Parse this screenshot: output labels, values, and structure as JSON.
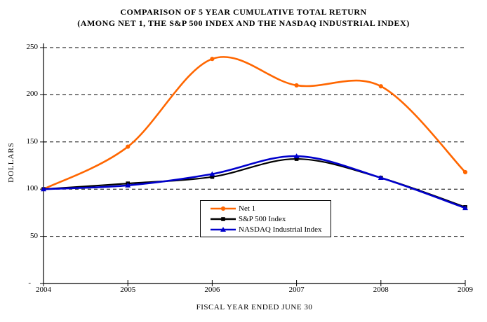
{
  "title": {
    "line1": "COMPARISON OF 5 YEAR CUMULATIVE TOTAL RETURN",
    "line2": "(AMONG NET 1, THE S&P 500 INDEX AND THE NASDAQ INDUSTRIAL INDEX)"
  },
  "chart_data": {
    "type": "line",
    "smooth": true,
    "title": "COMPARISON OF 5 YEAR CUMULATIVE TOTAL RETURN (AMONG NET 1, THE S&P 500 INDEX AND THE NASDAQ INDUSTRIAL INDEX)",
    "categories": [
      "2004",
      "2005",
      "2006",
      "2007",
      "2008",
      "2009"
    ],
    "series": [
      {
        "name": "Net 1",
        "color": "#FF6600",
        "marker": "circle",
        "values": [
          100,
          145,
          238,
          210,
          209,
          118
        ]
      },
      {
        "name": "S&P 500 Index",
        "color": "#000000",
        "marker": "square",
        "values": [
          100,
          106,
          113,
          132,
          112,
          81
        ]
      },
      {
        "name": "NASDAQ Industrial Index",
        "color": "#0000CC",
        "marker": "triangle",
        "values": [
          100,
          104,
          116,
          135,
          112,
          80
        ]
      }
    ],
    "xlabel": "FISCAL YEAR ENDED JUNE 30",
    "ylabel": "DOLLARS",
    "ylim": [
      0,
      250
    ],
    "y_ticks": [
      {
        "value": 250,
        "label": "250"
      },
      {
        "value": 200,
        "label": "200"
      },
      {
        "value": 150,
        "label": "150"
      },
      {
        "value": 100,
        "label": "100"
      },
      {
        "value": 50,
        "label": "50"
      },
      {
        "value": 0,
        "label": "-"
      }
    ],
    "grid": "horizontal-dashed",
    "grid_color": "#000000",
    "legend_position": "inside-bottom-center",
    "background": "#FFFFFF"
  }
}
